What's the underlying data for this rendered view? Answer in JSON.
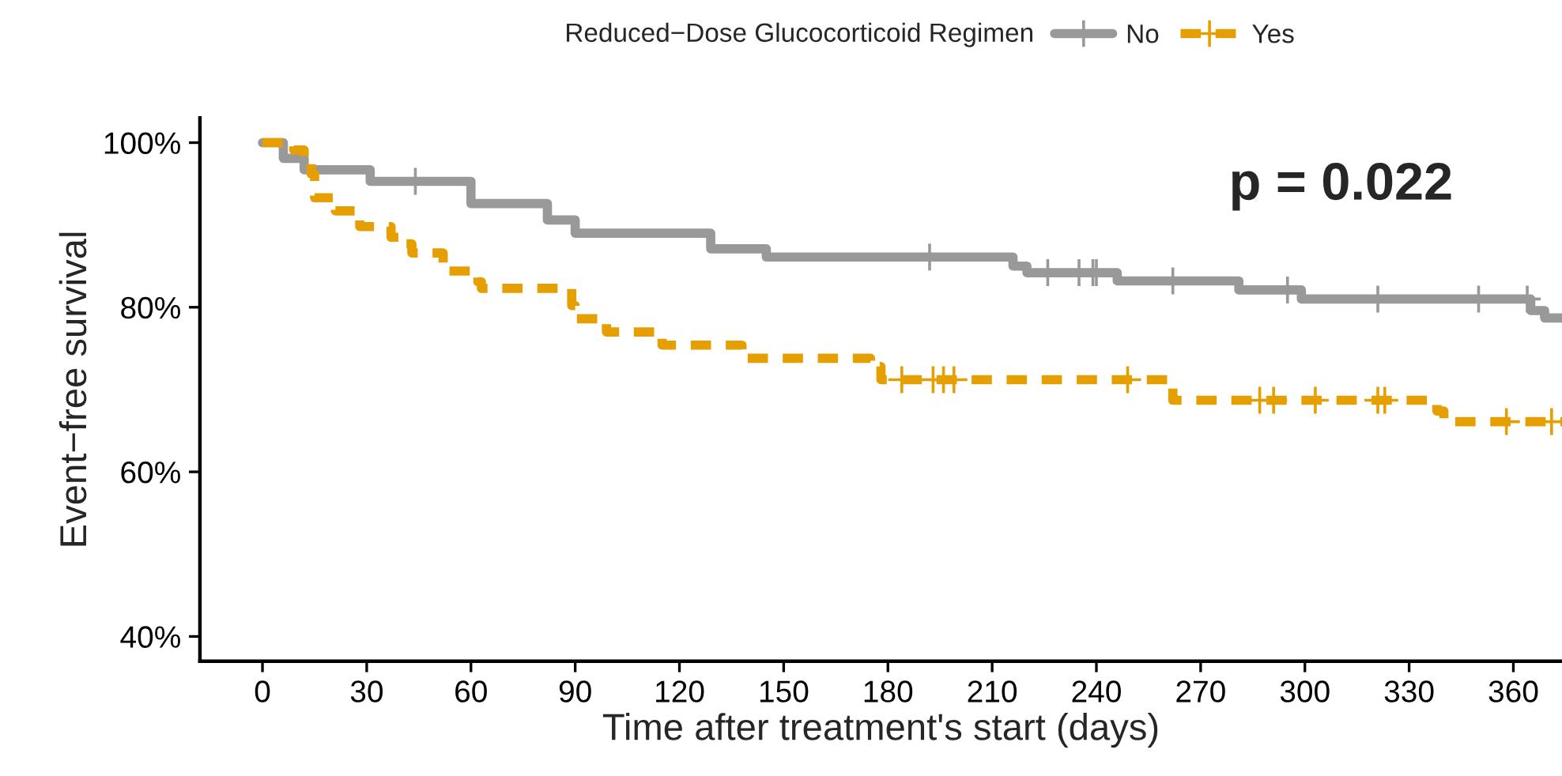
{
  "chart_data": {
    "type": "step",
    "xlabel": "Time after treatment's start (days)",
    "ylabel": "Event−free survival",
    "legend_title": "Reduced−Dose Glucocorticoid Regimen",
    "annotations": [
      "p = 0.022"
    ],
    "series": [
      {
        "name": "No",
        "color": "#999999",
        "line_style": "solid",
        "x": [
          0,
          6,
          12,
          31,
          60,
          82,
          90,
          129,
          145,
          216,
          220,
          246,
          281,
          299,
          365,
          369,
          374
        ],
        "values": [
          100,
          98.1,
          96.7,
          95.3,
          92.6,
          90.6,
          89.0,
          87.1,
          86.1,
          85.0,
          84.2,
          83.2,
          82.1,
          81.0,
          79.6,
          78.7,
          78.7
        ]
      },
      {
        "name": "Yes",
        "color": "#e69f00",
        "line_style": "dashed",
        "x": [
          0,
          9,
          12,
          14,
          15,
          21,
          28,
          37,
          40,
          43,
          52,
          53,
          62,
          63,
          89,
          90,
          99,
          115,
          138,
          175,
          178,
          262,
          338,
          340,
          374
        ],
        "values": [
          100,
          99.1,
          97.8,
          96.2,
          93.3,
          91.7,
          89.8,
          88.5,
          87.7,
          86.6,
          85.1,
          84.4,
          83.1,
          82.3,
          80.2,
          78.6,
          77.0,
          75.4,
          73.8,
          72.8,
          71.2,
          68.7,
          67.4,
          66.1,
          66.1
        ]
      },
      {
        "type": "scatter",
        "color": "#999999",
        "marker": "cross",
        "x": [
          44,
          192,
          226,
          235,
          239,
          240,
          262,
          295,
          321,
          350,
          364
        ],
        "values": [
          95.3,
          86.1,
          84.2,
          84.2,
          84.2,
          84.2,
          83.2,
          82.1,
          81.0,
          81.0,
          81.0
        ]
      },
      {
        "type": "scatter",
        "color": "#e69f00",
        "marker": "cross",
        "x": [
          184,
          193,
          196,
          199,
          249,
          287,
          291,
          303,
          321,
          323,
          358,
          371
        ],
        "values": [
          71.2,
          71.2,
          71.2,
          71.2,
          71.2,
          68.7,
          68.7,
          68.7,
          68.7,
          68.7,
          66.1,
          66.1
        ]
      }
    ],
    "xlim": [
      -18,
      374
    ],
    "xticks": [
      0,
      30,
      60,
      90,
      120,
      150,
      180,
      210,
      240,
      270,
      300,
      330,
      360
    ],
    "ylim": [
      37,
      103
    ],
    "yticks": [
      {
        "value": 40,
        "label": "40%"
      },
      {
        "value": 60,
        "label": "60%"
      },
      {
        "value": 80,
        "label": "80%"
      },
      {
        "value": 100,
        "label": "100%"
      }
    ],
    "legend": "top",
    "grid": false
  }
}
